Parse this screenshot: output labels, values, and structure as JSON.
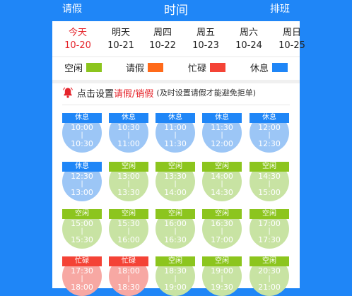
{
  "header": {
    "left_label": "请假",
    "title": "时间",
    "right_label": "排班"
  },
  "days": [
    {
      "weekday": "今天",
      "date": "10-20",
      "today": true
    },
    {
      "weekday": "明天",
      "date": "10-21",
      "today": false
    },
    {
      "weekday": "周四",
      "date": "10-22",
      "today": false
    },
    {
      "weekday": "周五",
      "date": "10-23",
      "today": false
    },
    {
      "weekday": "周六",
      "date": "10-24",
      "today": false
    },
    {
      "weekday": "周日",
      "date": "10-25",
      "today": false
    }
  ],
  "legend": [
    {
      "label": "空闲",
      "color": "#8cc51e"
    },
    {
      "label": "请假",
      "color": "#ff6a1a"
    },
    {
      "label": "忙碌",
      "color": "#f44336"
    },
    {
      "label": "休息",
      "color": "#1f86f7"
    }
  ],
  "notice": {
    "prefix": "点击设置",
    "highlight": "请假/销假",
    "hint": "(及时设置请假才能避免拒单)"
  },
  "status_styles": {
    "休息": {
      "header": "#1f86f7",
      "body": "#9cc6f6"
    },
    "空闲": {
      "header": "#8cc51e",
      "body": "#c8e3a3"
    },
    "忙碌": {
      "header": "#f44336",
      "body": "#f7a8a3"
    }
  },
  "slots": [
    {
      "status": "休息",
      "start": "10:00",
      "end": "10:30"
    },
    {
      "status": "休息",
      "start": "10:30",
      "end": "11:00"
    },
    {
      "status": "休息",
      "start": "11:00",
      "end": "11:30"
    },
    {
      "status": "休息",
      "start": "11:30",
      "end": "12:00"
    },
    {
      "status": "休息",
      "start": "12:00",
      "end": "12:30"
    },
    {
      "status": "休息",
      "start": "12:30",
      "end": "13:00"
    },
    {
      "status": "空闲",
      "start": "13:00",
      "end": "13:30"
    },
    {
      "status": "空闲",
      "start": "13:30",
      "end": "14:00"
    },
    {
      "status": "空闲",
      "start": "14:00",
      "end": "14:30"
    },
    {
      "status": "空闲",
      "start": "14:30",
      "end": "15:00"
    },
    {
      "status": "空闲",
      "start": "15:00",
      "end": "15:30"
    },
    {
      "status": "空闲",
      "start": "15:30",
      "end": "16:00"
    },
    {
      "status": "空闲",
      "start": "16:00",
      "end": "16:30"
    },
    {
      "status": "空闲",
      "start": "16:30",
      "end": "17:00"
    },
    {
      "status": "空闲",
      "start": "17:00",
      "end": "17:30"
    },
    {
      "status": "忙碌",
      "start": "17:30",
      "end": "18:00"
    },
    {
      "status": "忙碌",
      "start": "18:00",
      "end": "18:30"
    },
    {
      "status": "空闲",
      "start": "18:30",
      "end": "19:00"
    },
    {
      "status": "空闲",
      "start": "19:00",
      "end": "19:30"
    },
    {
      "status": "空闲",
      "start": "20:30",
      "end": "21:00"
    }
  ]
}
